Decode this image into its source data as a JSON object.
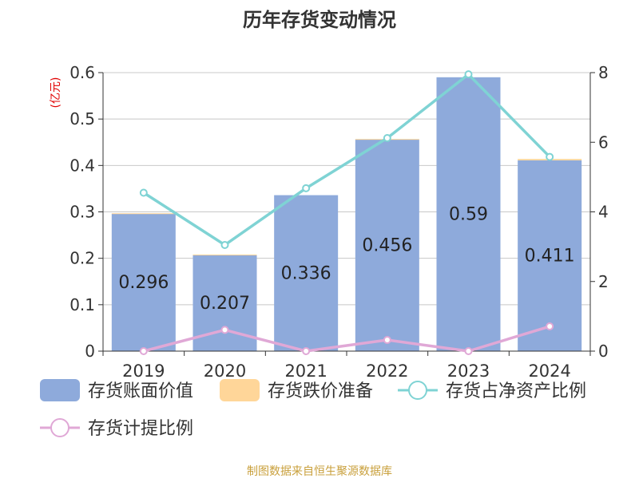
{
  "chart_data": {
    "type": "bar",
    "title": "历年存货变动情况",
    "unit_label": "(亿元)",
    "categories": [
      "2019",
      "2020",
      "2021",
      "2022",
      "2023",
      "2024"
    ],
    "series": [
      {
        "name": "存货账面价值",
        "kind": "bar",
        "axis": "left",
        "values": [
          0.296,
          0.207,
          0.336,
          0.456,
          0.59,
          0.411
        ],
        "data_labels": [
          "0.296",
          "0.207",
          "0.336",
          "0.456",
          "0.59",
          "0.411"
        ]
      },
      {
        "name": "存货跌价准备",
        "kind": "bar-stacked",
        "axis": "left",
        "values": [
          0.001,
          0.001,
          0.0,
          0.001,
          0.0,
          0.003
        ]
      },
      {
        "name": "存货占净资产比例",
        "kind": "line",
        "axis": "right",
        "values": [
          4.55,
          3.05,
          4.68,
          6.12,
          7.95,
          5.58
        ]
      },
      {
        "name": "存货计提比例",
        "kind": "line",
        "axis": "right",
        "values": [
          0.0,
          0.61,
          0.0,
          0.32,
          0.0,
          0.71
        ]
      }
    ],
    "y_left": {
      "min": 0,
      "max": 0.6,
      "ticks": [
        "0",
        "0.1",
        "0.2",
        "0.3",
        "0.4",
        "0.5",
        "0.6"
      ]
    },
    "y_right": {
      "min": 0,
      "max": 8,
      "ticks": [
        "0",
        "2",
        "4",
        "6",
        "8"
      ]
    },
    "grid": true,
    "legend_position": "bottom"
  },
  "colors": {
    "bar": "#8eaadb",
    "reserve": "#ffd699",
    "ratio_line": "#7fd3d4",
    "provision_line": "#e0a8d6",
    "title": "#333333",
    "unit": "#e00000",
    "source": "#c9a03c"
  },
  "footer": {
    "source": "制图数据来自恒生聚源数据库"
  }
}
